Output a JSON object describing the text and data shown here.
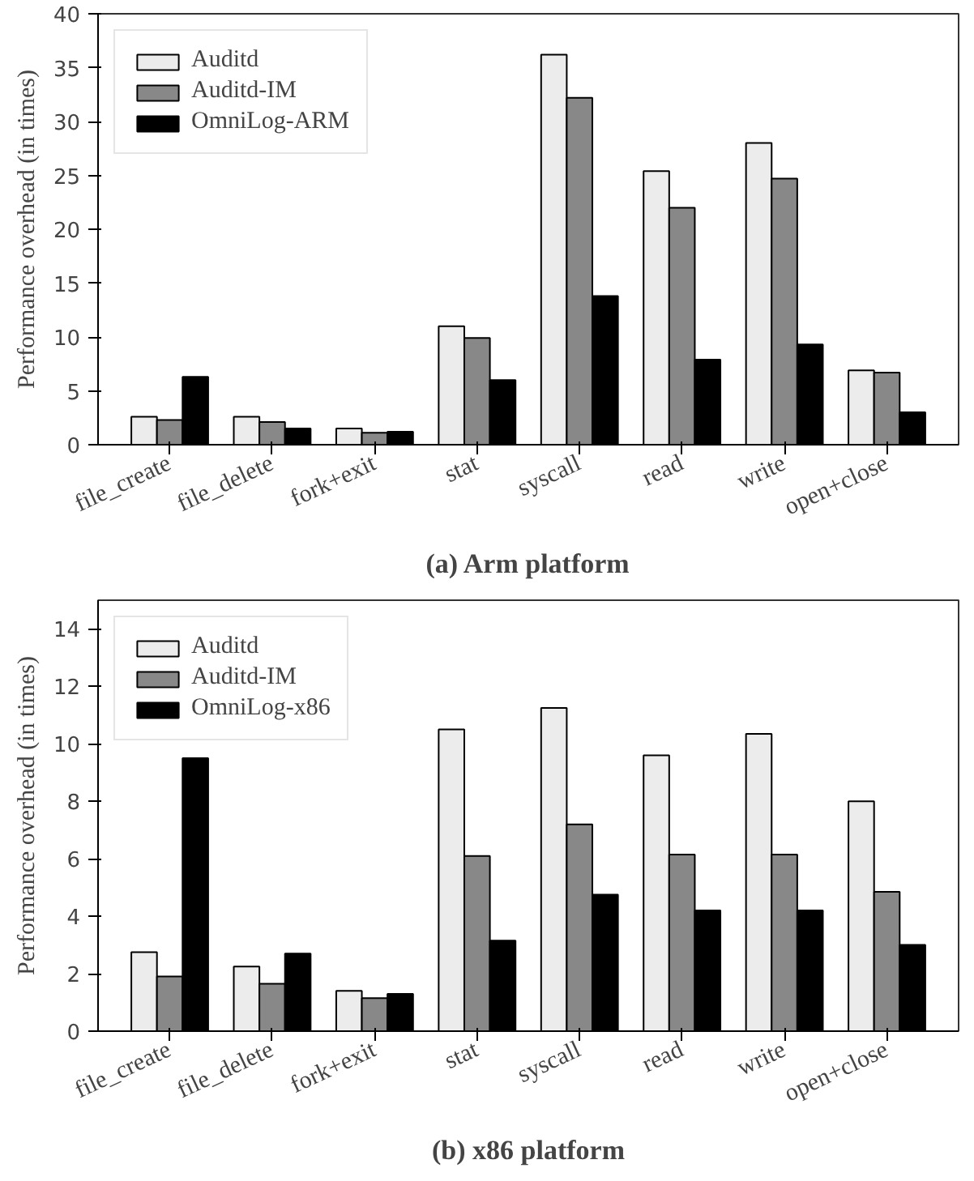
{
  "chart_data": [
    {
      "type": "bar",
      "title": "(a) Arm platform",
      "ylabel": "Performance overhead (in times)",
      "categories": [
        "file_create",
        "file_delete",
        "fork+exit",
        "stat",
        "syscall",
        "read",
        "write",
        "open+close"
      ],
      "ylim": [
        0,
        40
      ],
      "yticks": [
        0,
        5,
        10,
        15,
        20,
        25,
        30,
        35,
        40
      ],
      "grid": false,
      "legend": "top left",
      "series": [
        {
          "name": "Auditd",
          "color": "#ececec",
          "values": [
            2.6,
            2.6,
            1.5,
            11,
            36.2,
            25.4,
            28,
            6.9
          ]
        },
        {
          "name": "Auditd-IM",
          "color": "#888888",
          "values": [
            2.3,
            2.1,
            1.1,
            9.9,
            32.2,
            22,
            24.7,
            6.7
          ]
        },
        {
          "name": "OmniLog-ARM",
          "color": "#000000",
          "values": [
            6.3,
            1.5,
            1.2,
            6,
            13.8,
            7.9,
            9.3,
            3
          ]
        }
      ]
    },
    {
      "type": "bar",
      "title": "(b) x86 platform",
      "ylabel": "Performance overhead (in times)",
      "categories": [
        "file_create",
        "file_delete",
        "fork+exit",
        "stat",
        "syscall",
        "read",
        "write",
        "open+close"
      ],
      "ylim": [
        0,
        15
      ],
      "yticks": [
        0,
        2,
        4,
        6,
        8,
        10,
        12,
        14
      ],
      "grid": false,
      "legend": "top left",
      "series": [
        {
          "name": "Auditd",
          "color": "#ececec",
          "values": [
            2.75,
            2.25,
            1.4,
            10.5,
            11.25,
            9.6,
            10.35,
            8.0
          ]
        },
        {
          "name": "Auditd-IM",
          "color": "#888888",
          "values": [
            1.9,
            1.65,
            1.15,
            6.1,
            7.2,
            6.15,
            6.15,
            4.85
          ]
        },
        {
          "name": "OmniLog-x86",
          "color": "#000000",
          "values": [
            9.5,
            2.7,
            1.3,
            3.15,
            4.75,
            4.2,
            4.2,
            3.0
          ]
        }
      ]
    }
  ]
}
